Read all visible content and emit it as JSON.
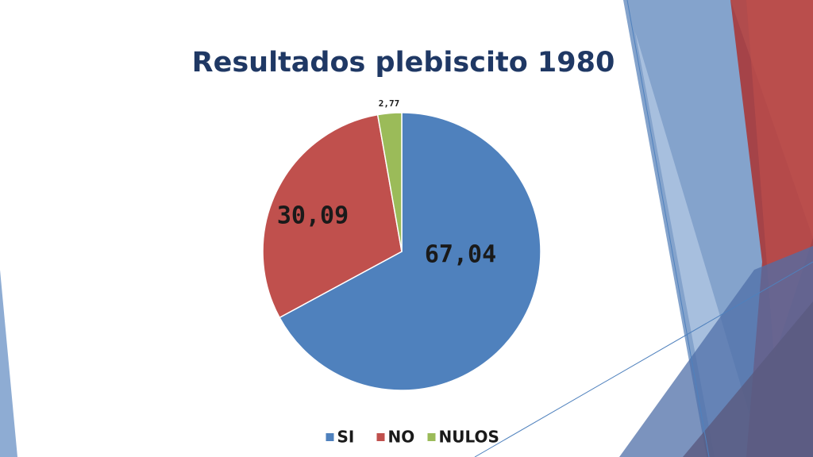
{
  "chart_data": {
    "type": "pie",
    "title": "Resultados plebiscito 1980",
    "categories": [
      "SI",
      "NO",
      "NULOS"
    ],
    "values": [
      67.04,
      30.09,
      2.77
    ],
    "value_labels": [
      "67,04",
      "30,09",
      "2,77"
    ],
    "colors": [
      "#4f81bd",
      "#c0504d",
      "#9bbb59"
    ],
    "legend": "bottom"
  }
}
